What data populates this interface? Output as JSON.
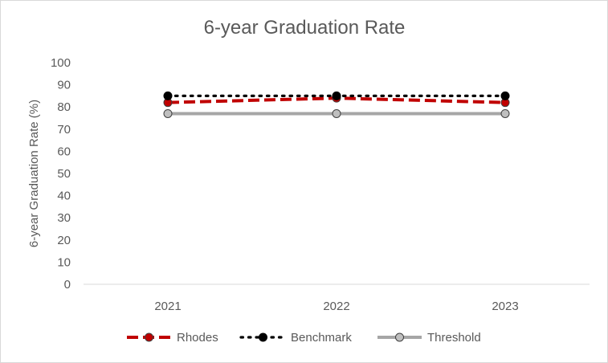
{
  "chart_data": {
    "type": "line",
    "title": "6-year Graduation Rate",
    "xlabel": "",
    "ylabel": "6-year Graduation Rate (%)",
    "categories": [
      "2021",
      "2022",
      "2023"
    ],
    "ylim": [
      0,
      100
    ],
    "yticks": [
      0,
      10,
      20,
      30,
      40,
      50,
      60,
      70,
      80,
      90,
      100
    ],
    "grid": false,
    "legend_position": "bottom",
    "series": [
      {
        "name": "Rhodes",
        "values": [
          82,
          84,
          82
        ],
        "color": "#c00000",
        "style": "dashed",
        "marker": "circle",
        "marker_fill": "#c00000"
      },
      {
        "name": "Benchmark",
        "values": [
          85,
          85,
          85
        ],
        "color": "#000000",
        "style": "dotted",
        "marker": "circle",
        "marker_fill": "#000000"
      },
      {
        "name": "Threshold",
        "values": [
          77,
          77,
          77
        ],
        "color": "#a6a6a6",
        "style": "solid",
        "marker": "circle",
        "marker_fill": "#bfbfbf"
      }
    ]
  }
}
